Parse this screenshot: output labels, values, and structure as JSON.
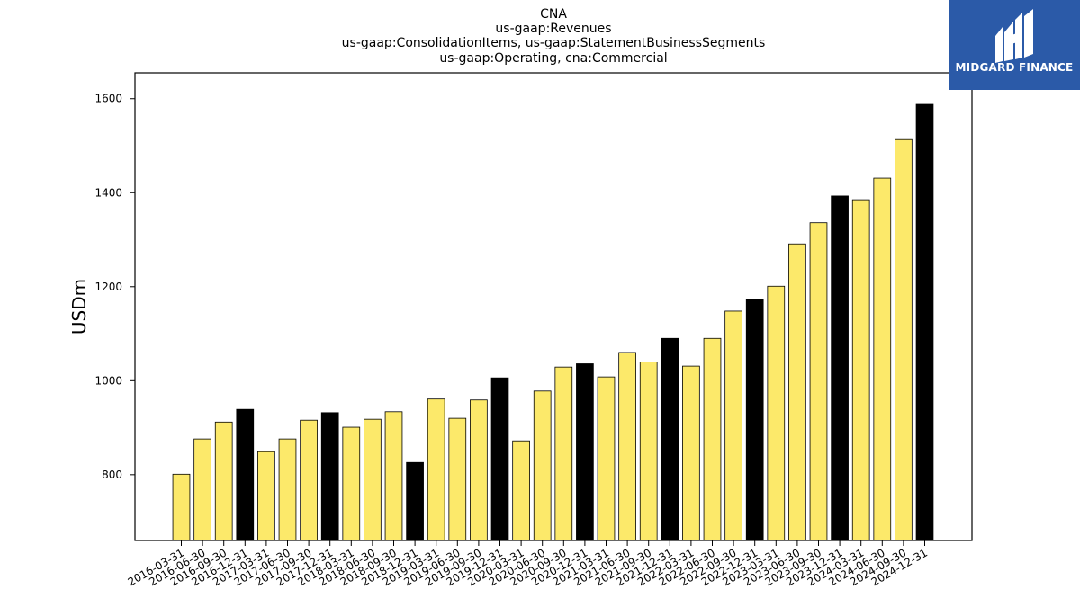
{
  "title_lines": [
    "CNA",
    "us-gaap:Revenues",
    "us-gaap:ConsolidationItems, us-gaap:StatementBusinessSegments",
    "us-gaap:Operating, cna:Commercial"
  ],
  "logo": {
    "text": "MIDGARD FINANCE",
    "background": "#2b5aa8"
  },
  "colors": {
    "quarter_bar": "#fce96a",
    "year_end_bar": "#000000",
    "bar_edge": "#000000"
  },
  "chart_data": {
    "type": "bar",
    "ylabel": "USDm",
    "xlabel": "",
    "ylim": [
      660,
      1655
    ],
    "yticks": [
      800,
      1000,
      1200,
      1400,
      1600
    ],
    "grid": false,
    "categories": [
      "2016-03-31",
      "2016-06-30",
      "2016-09-30",
      "2016-12-31",
      "2017-03-31",
      "2017-06-30",
      "2017-09-30",
      "2017-12-31",
      "2018-03-31",
      "2018-06-30",
      "2018-09-30",
      "2018-12-31",
      "2019-03-31",
      "2019-06-30",
      "2019-09-30",
      "2019-12-31",
      "2020-03-31",
      "2020-06-30",
      "2020-09-30",
      "2020-12-31",
      "2021-03-31",
      "2021-06-30",
      "2021-09-30",
      "2021-12-31",
      "2022-03-31",
      "2022-06-30",
      "2022-09-30",
      "2022-12-31",
      "2023-03-31",
      "2023-06-30",
      "2023-09-30",
      "2023-12-31",
      "2024-03-31",
      "2024-06-30",
      "2024-09-30",
      "2024-12-31"
    ],
    "values": [
      801,
      876,
      912,
      939,
      849,
      876,
      916,
      932,
      901,
      918,
      934,
      826,
      961,
      920,
      959,
      1006,
      872,
      978,
      1029,
      1036,
      1008,
      1060,
      1040,
      1090,
      1031,
      1090,
      1148,
      1173,
      1201,
      1291,
      1336,
      1393,
      1385,
      1431,
      1513,
      1588
    ],
    "year_end": [
      false,
      false,
      false,
      true,
      false,
      false,
      false,
      true,
      false,
      false,
      false,
      true,
      false,
      false,
      false,
      true,
      false,
      false,
      false,
      true,
      false,
      false,
      false,
      true,
      false,
      false,
      false,
      true,
      false,
      false,
      false,
      true,
      false,
      false,
      false,
      true
    ]
  }
}
